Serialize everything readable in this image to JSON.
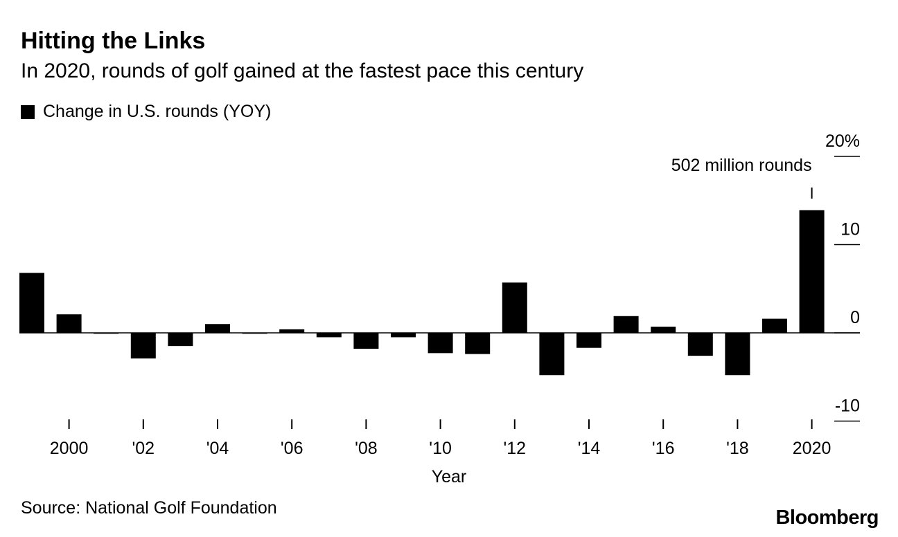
{
  "chart_data": {
    "type": "bar",
    "title": "Hitting the Links",
    "subtitle": "In 2020, rounds of golf gained at the fastest pace this century",
    "legend": [
      "Change in U.S. rounds (YOY)"
    ],
    "series": [
      {
        "name": "Change in U.S. rounds (YOY)",
        "x": [
          1999,
          2000,
          2001,
          2002,
          2003,
          2004,
          2005,
          2006,
          2007,
          2008,
          2009,
          2010,
          2011,
          2012,
          2013,
          2014,
          2015,
          2016,
          2017,
          2018,
          2019,
          2020
        ],
        "values": [
          6.8,
          2.1,
          -0.1,
          -2.9,
          -1.5,
          1.0,
          -0.1,
          0.4,
          -0.5,
          -1.8,
          -0.5,
          -2.3,
          -2.4,
          5.7,
          -4.8,
          -1.7,
          1.9,
          0.7,
          -2.6,
          -4.8,
          1.6,
          13.9
        ]
      }
    ],
    "xlabel": "Year",
    "ylabel": "",
    "ylim": [
      -10,
      20
    ],
    "yticks": [
      {
        "value": 20,
        "label": "20%"
      },
      {
        "value": 10,
        "label": "10"
      },
      {
        "value": 0,
        "label": "0"
      },
      {
        "value": -10,
        "label": "-10"
      }
    ],
    "xticks": [
      {
        "value": 2000,
        "label": "2000"
      },
      {
        "value": 2002,
        "label": "'02"
      },
      {
        "value": 2004,
        "label": "'04"
      },
      {
        "value": 2006,
        "label": "'06"
      },
      {
        "value": 2008,
        "label": "'08"
      },
      {
        "value": 2010,
        "label": "'10"
      },
      {
        "value": 2012,
        "label": "'12"
      },
      {
        "value": 2014,
        "label": "'14"
      },
      {
        "value": 2016,
        "label": "'16"
      },
      {
        "value": 2018,
        "label": "'18"
      },
      {
        "value": 2020,
        "label": "2020"
      }
    ],
    "annotations": [
      {
        "x": 2020,
        "text": "502 million rounds"
      }
    ],
    "grid": false,
    "legend_position": "top-left"
  },
  "source": "Source: National Golf Foundation",
  "brand": "Bloomberg",
  "colors": {
    "bar": "#000000",
    "text": "#000000",
    "background": "#ffffff"
  }
}
